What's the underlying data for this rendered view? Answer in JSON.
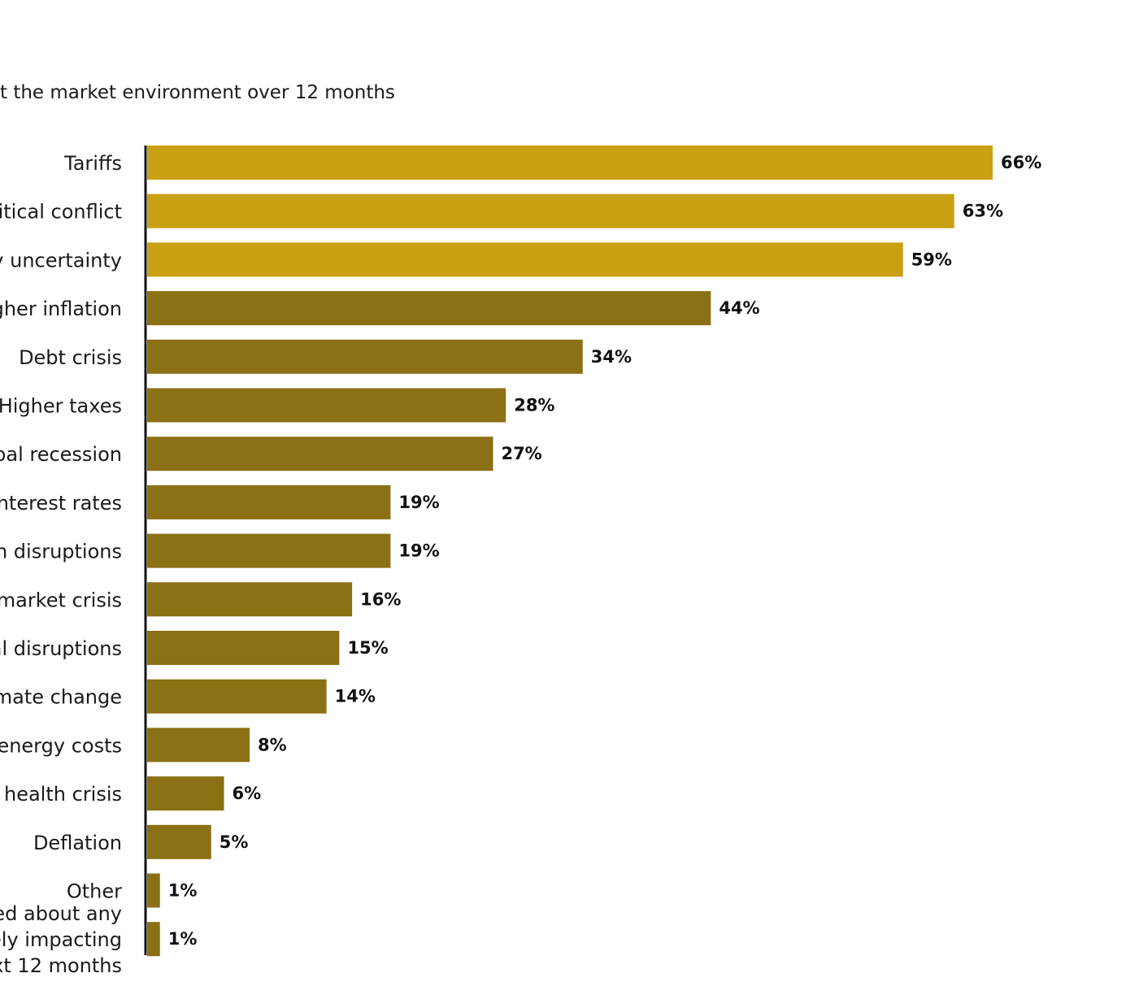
{
  "chart_data": {
    "type": "bar",
    "orientation": "horizontal",
    "subtitle": "t the market environment over 12 months",
    "categories": [
      [
        "Tariffs"
      ],
      [
        "litical conflict"
      ],
      [
        "y uncertainty"
      ],
      [
        "gher inflation"
      ],
      [
        "Debt crisis"
      ],
      [
        "Higher taxes"
      ],
      [
        "obal recession"
      ],
      [
        "interest rates"
      ],
      [
        "n disruptions"
      ],
      [
        "market crisis"
      ],
      [
        "al disruptions"
      ],
      [
        "mate change"
      ],
      [
        "energy costs"
      ],
      [
        "al health crisis"
      ],
      [
        "Deflation"
      ],
      [
        "Other"
      ],
      [
        "ed about any",
        "ely impacting",
        "xt 12 months"
      ]
    ],
    "values": [
      66,
      63,
      59,
      44,
      34,
      28,
      27,
      19,
      19,
      16,
      15,
      14,
      8,
      6,
      5,
      1,
      1
    ],
    "value_labels": [
      "66%",
      "63%",
      "59%",
      "44%",
      "34%",
      "28%",
      "27%",
      "19%",
      "19%",
      "16%",
      "15%",
      "14%",
      "8%",
      "6%",
      "5%",
      "1%",
      "1%"
    ],
    "highlight_count": 3,
    "colors": {
      "highlight": "#c8a012",
      "default": "#8b7015",
      "axis": "#111111"
    },
    "xlim": [
      0,
      66
    ],
    "grid": false,
    "legend": "none"
  }
}
